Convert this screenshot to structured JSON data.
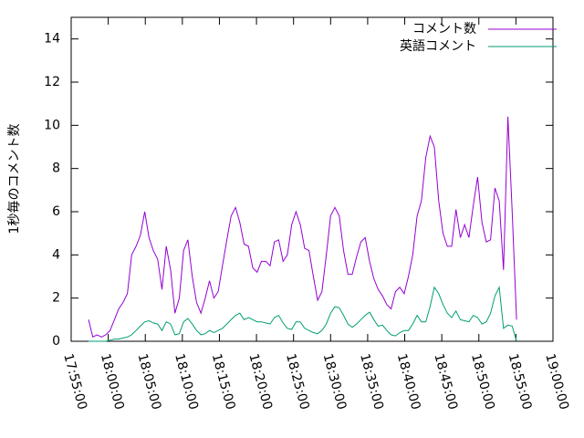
{
  "chart_data": {
    "type": "line",
    "y_label": "1秒毎のコメント数",
    "legend": "top-right",
    "xlim": [
      64500,
      68400
    ],
    "xticks": [
      {
        "value": 64500,
        "label": "17:55:00"
      },
      {
        "value": 64800,
        "label": "18:00:00"
      },
      {
        "value": 65100,
        "label": "18:05:00"
      },
      {
        "value": 65400,
        "label": "18:10:00"
      },
      {
        "value": 65700,
        "label": "18:15:00"
      },
      {
        "value": 66000,
        "label": "18:20:00"
      },
      {
        "value": 66300,
        "label": "18:25:00"
      },
      {
        "value": 66600,
        "label": "18:30:00"
      },
      {
        "value": 66900,
        "label": "18:35:00"
      },
      {
        "value": 67200,
        "label": "18:40:00"
      },
      {
        "value": 67500,
        "label": "18:45:00"
      },
      {
        "value": 67800,
        "label": "18:50:00"
      },
      {
        "value": 68100,
        "label": "18:55:00"
      },
      {
        "value": 68400,
        "label": "19:00:00"
      }
    ],
    "ylim": [
      0,
      15
    ],
    "yticks": [
      0,
      2,
      4,
      6,
      8,
      10,
      12,
      14
    ],
    "x": [
      64640,
      64675,
      64710,
      64745,
      64780,
      64815,
      64850,
      64885,
      64920,
      64955,
      64990,
      65025,
      65060,
      65095,
      65130,
      65165,
      65200,
      65235,
      65270,
      65305,
      65340,
      65375,
      65410,
      65445,
      65480,
      65515,
      65550,
      65585,
      65620,
      65655,
      65690,
      65725,
      65760,
      65795,
      65830,
      65865,
      65900,
      65935,
      65970,
      66005,
      66040,
      66075,
      66110,
      66145,
      66180,
      66215,
      66250,
      66285,
      66320,
      66355,
      66390,
      66425,
      66460,
      66495,
      66530,
      66565,
      66600,
      66635,
      66670,
      66705,
      66740,
      66775,
      66810,
      66845,
      66880,
      66915,
      66950,
      66985,
      67020,
      67055,
      67090,
      67125,
      67160,
      67195,
      67230,
      67265,
      67300,
      67335,
      67370,
      67405,
      67440,
      67475,
      67510,
      67545,
      67580,
      67615,
      67650,
      67685,
      67720,
      67755,
      67790,
      67825,
      67860,
      67895,
      67930,
      67965,
      68000,
      68035,
      68070,
      68105
    ],
    "series": [
      {
        "name": "コメント数",
        "color": "#9400d3",
        "values": [
          1.0,
          0.2,
          0.3,
          0.2,
          0.3,
          0.5,
          1.0,
          1.5,
          1.8,
          2.2,
          4.0,
          4.4,
          4.9,
          6.0,
          4.8,
          4.2,
          3.8,
          2.4,
          4.4,
          3.3,
          1.3,
          2.0,
          4.2,
          4.7,
          3.0,
          1.8,
          1.3,
          2.0,
          2.8,
          2.0,
          2.3,
          3.5,
          4.7,
          5.8,
          6.2,
          5.5,
          4.5,
          4.4,
          3.4,
          3.2,
          3.7,
          3.7,
          3.5,
          4.6,
          4.7,
          3.7,
          4.0,
          5.4,
          6.0,
          5.4,
          4.3,
          4.2,
          3.0,
          1.9,
          2.3,
          4.0,
          5.8,
          6.2,
          5.8,
          4.2,
          3.1,
          3.1,
          3.9,
          4.6,
          4.8,
          3.7,
          2.9,
          2.4,
          2.1,
          1.7,
          1.5,
          2.3,
          2.5,
          2.2,
          3.0,
          4.0,
          5.8,
          6.5,
          8.5,
          9.5,
          9.0,
          6.5,
          5.0,
          4.4,
          4.4,
          6.1,
          4.8,
          5.4,
          4.8,
          6.3,
          7.6,
          5.5,
          4.6,
          4.7,
          7.1,
          6.5,
          3.3,
          10.4,
          6.0,
          1.0
        ]
      },
      {
        "name": "英語コメント",
        "color": "#009e73",
        "values": [
          0,
          0,
          0,
          0,
          0,
          0.05,
          0.1,
          0.1,
          0.15,
          0.2,
          0.3,
          0.5,
          0.7,
          0.9,
          0.95,
          0.85,
          0.8,
          0.5,
          0.9,
          0.8,
          0.3,
          0.35,
          0.9,
          1.05,
          0.8,
          0.5,
          0.3,
          0.35,
          0.5,
          0.4,
          0.5,
          0.6,
          0.8,
          1.0,
          1.2,
          1.3,
          1.0,
          1.1,
          1.0,
          0.9,
          0.9,
          0.85,
          0.8,
          1.1,
          1.2,
          0.85,
          0.6,
          0.55,
          0.9,
          0.9,
          0.6,
          0.5,
          0.4,
          0.35,
          0.5,
          0.8,
          1.3,
          1.6,
          1.55,
          1.2,
          0.8,
          0.65,
          0.8,
          1.0,
          1.2,
          1.35,
          1.0,
          0.7,
          0.75,
          0.5,
          0.3,
          0.25,
          0.4,
          0.5,
          0.5,
          0.8,
          1.2,
          0.9,
          0.9,
          1.6,
          2.5,
          2.2,
          1.7,
          1.3,
          1.1,
          1.4,
          1.0,
          0.95,
          0.9,
          1.2,
          1.1,
          0.8,
          0.9,
          1.3,
          2.1,
          2.5,
          0.6,
          0.75,
          0.7,
          0
        ]
      }
    ]
  }
}
